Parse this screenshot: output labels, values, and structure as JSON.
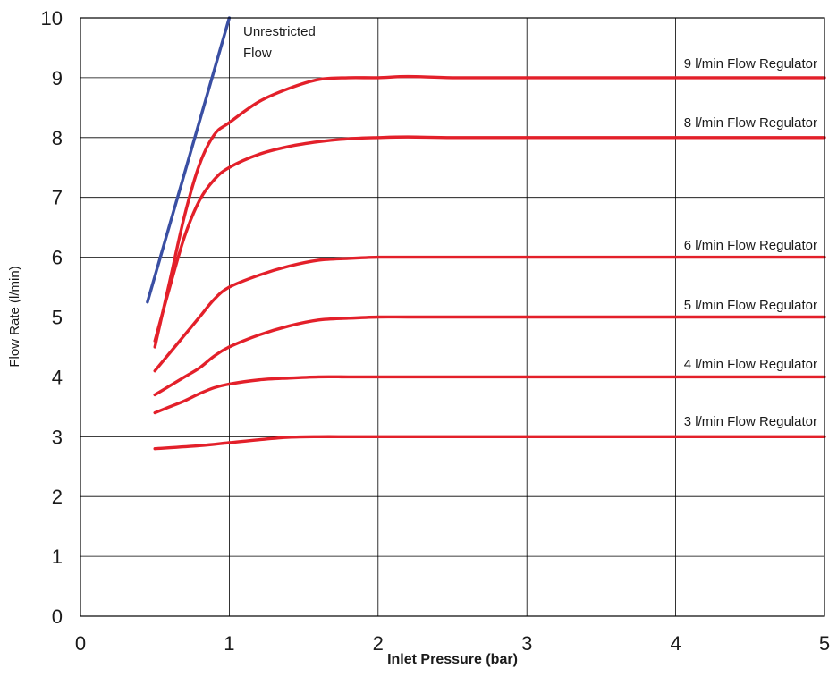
{
  "chart_data": {
    "type": "line",
    "title": "",
    "xlabel": "Inlet Pressure (bar)",
    "ylabel": "Flow Rate (l/min)",
    "xlim": [
      0,
      5
    ],
    "ylim": [
      0,
      10
    ],
    "x_ticks": [
      0,
      1,
      2,
      3,
      4,
      5
    ],
    "y_ticks": [
      0,
      1,
      2,
      3,
      4,
      5,
      6,
      7,
      8,
      9,
      10
    ],
    "grid": true,
    "legend": "none",
    "series": [
      {
        "name": "Unrestricted Flow",
        "color": "#3a4fa3",
        "x": [
          0.45,
          1.0
        ],
        "y": [
          5.25,
          10.0
        ]
      },
      {
        "name": "9 l/min Flow Regulator",
        "color": "#e3202a",
        "x": [
          0.5,
          0.6,
          0.7,
          0.8,
          0.9,
          1.0,
          1.2,
          1.4,
          1.6,
          1.8,
          2.0,
          2.2,
          2.5,
          3.0,
          4.0,
          5.0
        ],
        "y": [
          4.5,
          5.6,
          6.7,
          7.55,
          8.05,
          8.25,
          8.6,
          8.82,
          8.97,
          9.0,
          9.0,
          9.02,
          9.0,
          9.0,
          9.0,
          9.0
        ]
      },
      {
        "name": "8 l/min Flow Regulator",
        "color": "#e3202a",
        "x": [
          0.5,
          0.6,
          0.7,
          0.8,
          0.9,
          1.0,
          1.2,
          1.4,
          1.6,
          1.8,
          2.0,
          2.2,
          2.5,
          3.0,
          4.0,
          5.0
        ],
        "y": [
          4.6,
          5.5,
          6.35,
          6.95,
          7.3,
          7.5,
          7.72,
          7.85,
          7.93,
          7.98,
          8.0,
          8.01,
          8.0,
          8.0,
          8.0,
          8.0
        ]
      },
      {
        "name": "6 l/min Flow Regulator",
        "color": "#e3202a",
        "x": [
          0.5,
          0.6,
          0.7,
          0.8,
          0.9,
          1.0,
          1.2,
          1.4,
          1.6,
          1.8,
          2.0,
          2.2,
          2.5,
          3.0,
          4.0,
          5.0
        ],
        "y": [
          4.1,
          4.4,
          4.7,
          5.0,
          5.3,
          5.5,
          5.7,
          5.85,
          5.95,
          5.98,
          6.0,
          6.0,
          6.0,
          6.0,
          6.0,
          6.0
        ]
      },
      {
        "name": "5 l/min Flow Regulator",
        "color": "#e3202a",
        "x": [
          0.5,
          0.6,
          0.7,
          0.8,
          0.9,
          1.0,
          1.2,
          1.4,
          1.6,
          1.8,
          2.0,
          2.2,
          2.5,
          3.0,
          4.0,
          5.0
        ],
        "y": [
          3.7,
          3.85,
          4.0,
          4.15,
          4.35,
          4.5,
          4.7,
          4.85,
          4.95,
          4.98,
          5.0,
          5.0,
          5.0,
          5.0,
          5.0,
          5.0
        ]
      },
      {
        "name": "4 l/min Flow Regulator",
        "color": "#e3202a",
        "x": [
          0.5,
          0.6,
          0.7,
          0.8,
          0.9,
          1.0,
          1.2,
          1.4,
          1.6,
          1.8,
          2.0,
          2.5,
          3.0,
          4.0,
          5.0
        ],
        "y": [
          3.4,
          3.5,
          3.6,
          3.72,
          3.82,
          3.88,
          3.95,
          3.98,
          4.0,
          4.0,
          4.0,
          4.0,
          4.0,
          4.0,
          4.0
        ]
      },
      {
        "name": "3 l/min Flow Regulator",
        "color": "#e3202a",
        "x": [
          0.5,
          0.8,
          1.0,
          1.2,
          1.4,
          1.6,
          1.8,
          2.0,
          2.5,
          3.0,
          4.0,
          5.0
        ],
        "y": [
          2.8,
          2.85,
          2.9,
          2.95,
          2.99,
          3.0,
          3.0,
          3.0,
          3.0,
          3.0,
          3.0,
          3.0
        ]
      }
    ],
    "annotations": {
      "unrestricted_line1": "Unrestricted",
      "unrestricted_line2": "Flow",
      "label_9": "9 l/min Flow Regulator",
      "label_8": "8 l/min Flow Regulator",
      "label_6": "6 l/min Flow Regulator",
      "label_5": "5 l/min Flow Regulator",
      "label_4": "4 l/min Flow Regulator",
      "label_3": "3 l/min Flow Regulator"
    }
  }
}
